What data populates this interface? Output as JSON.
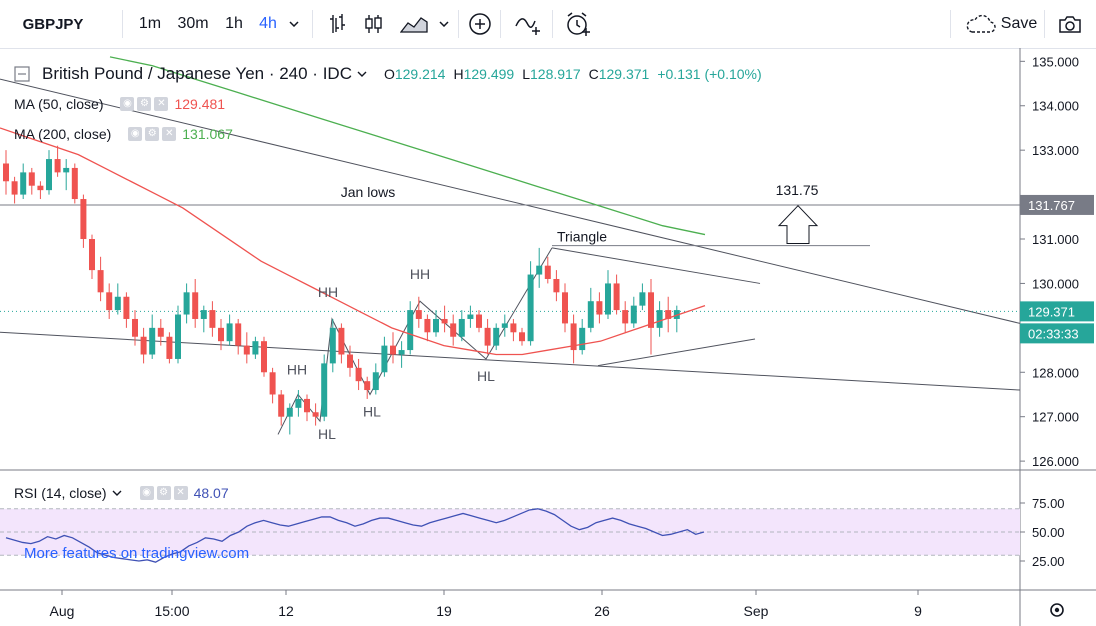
{
  "toolbar": {
    "symbol": "GBPJPY",
    "intervals": [
      "1m",
      "30m",
      "1h",
      "4h"
    ],
    "active_interval": "4h",
    "save_label": "Save"
  },
  "legend": {
    "title": "British Pound / Japanese Yen · 240 · IDC",
    "open_label": "O",
    "open": "129.214",
    "high_label": "H",
    "high": "129.499",
    "low_label": "L",
    "low": "128.917",
    "close_label": "C",
    "close": "129.371",
    "change": "+0.131 (+0.10%)",
    "ma50_name": "MA (50, close)",
    "ma50_value": "129.481",
    "ma200_name": "MA (200, close)",
    "ma200_value": "131.067",
    "rsi_name": "RSI (14, close)",
    "rsi_value": "48.07"
  },
  "promo_text": "More features on tradingview.com",
  "chart_data": {
    "type": "candlestick",
    "price_axis": {
      "ticks": [
        "135.000",
        "134.000",
        "133.000",
        "131.767",
        "131.000",
        "130.000",
        "129.371",
        "128.000",
        "127.000",
        "126.000"
      ],
      "last_price": "129.371",
      "countdown": "02:33:33",
      "range": [
        125.8,
        135.3
      ]
    },
    "time_axis": {
      "ticks": [
        "Aug",
        "15:00",
        "12",
        "19",
        "26",
        "Sep",
        "9"
      ]
    },
    "rsi_axis": {
      "ticks": [
        "75.00",
        "50.00",
        "25.00"
      ],
      "range": [
        0,
        100
      ]
    },
    "colors": {
      "up": "#26a69a",
      "down": "#ef5350",
      "ma50": "#ef5350",
      "ma200": "#4caf50",
      "rsi": "#3f51b5",
      "rsi_band": "#f3e5fc",
      "price_line": "#26a69a"
    },
    "annotations": {
      "level_label": "Jan lows",
      "level_value": 131.767,
      "target_label": "131.75",
      "pattern_label": "Triangle",
      "swing_labels": [
        "HH",
        "HH",
        "HL",
        "HL",
        "HH",
        "HL"
      ]
    },
    "candles": [
      [
        132.7,
        133.0,
        132.0,
        132.3
      ],
      [
        132.3,
        132.4,
        131.8,
        132.0
      ],
      [
        132.0,
        132.7,
        131.9,
        132.5
      ],
      [
        132.5,
        132.6,
        132.0,
        132.2
      ],
      [
        132.2,
        132.3,
        131.9,
        132.1
      ],
      [
        132.1,
        133.0,
        132.0,
        132.8
      ],
      [
        132.8,
        133.1,
        132.4,
        132.5
      ],
      [
        132.5,
        132.8,
        132.1,
        132.6
      ],
      [
        132.6,
        132.7,
        131.8,
        131.9
      ],
      [
        131.9,
        132.0,
        130.8,
        131.0
      ],
      [
        131.0,
        131.1,
        130.1,
        130.3
      ],
      [
        130.3,
        130.6,
        129.6,
        129.8
      ],
      [
        129.8,
        130.0,
        129.2,
        129.4
      ],
      [
        129.4,
        130.0,
        129.3,
        129.7
      ],
      [
        129.7,
        129.8,
        129.0,
        129.2
      ],
      [
        129.2,
        129.4,
        128.6,
        128.8
      ],
      [
        128.8,
        129.0,
        128.2,
        128.4
      ],
      [
        128.4,
        129.3,
        128.3,
        129.0
      ],
      [
        129.0,
        129.2,
        128.6,
        128.8
      ],
      [
        128.8,
        128.9,
        128.2,
        128.3
      ],
      [
        128.3,
        129.5,
        128.2,
        129.3
      ],
      [
        129.3,
        130.0,
        129.1,
        129.8
      ],
      [
        129.8,
        130.1,
        129.0,
        129.2
      ],
      [
        129.2,
        129.5,
        128.9,
        129.4
      ],
      [
        129.4,
        129.6,
        128.8,
        129.0
      ],
      [
        129.0,
        129.2,
        128.5,
        128.7
      ],
      [
        128.7,
        129.3,
        128.6,
        129.1
      ],
      [
        129.1,
        129.2,
        128.4,
        128.6
      ],
      [
        128.6,
        128.9,
        128.2,
        128.4
      ],
      [
        128.4,
        128.8,
        128.3,
        128.7
      ],
      [
        128.7,
        128.8,
        127.9,
        128.0
      ],
      [
        128.0,
        128.1,
        127.3,
        127.5
      ],
      [
        127.5,
        127.6,
        126.8,
        127.0
      ],
      [
        127.0,
        127.3,
        126.6,
        127.2
      ],
      [
        127.2,
        127.6,
        127.0,
        127.4
      ],
      [
        127.4,
        127.5,
        126.9,
        127.1
      ],
      [
        127.1,
        127.3,
        126.8,
        127.0
      ],
      [
        127.0,
        128.4,
        126.9,
        128.2
      ],
      [
        128.2,
        129.2,
        128.0,
        129.0
      ],
      [
        129.0,
        129.1,
        128.2,
        128.4
      ],
      [
        128.4,
        128.6,
        127.9,
        128.1
      ],
      [
        128.1,
        128.3,
        127.6,
        127.8
      ],
      [
        127.8,
        127.9,
        127.4,
        127.6
      ],
      [
        127.6,
        128.2,
        127.5,
        128.0
      ],
      [
        128.0,
        128.8,
        127.9,
        128.6
      ],
      [
        128.6,
        128.9,
        128.2,
        128.4
      ],
      [
        128.4,
        128.7,
        128.1,
        128.5
      ],
      [
        128.5,
        129.6,
        128.4,
        129.4
      ],
      [
        129.4,
        129.7,
        129.0,
        129.2
      ],
      [
        129.2,
        129.3,
        128.7,
        128.9
      ],
      [
        128.9,
        129.4,
        128.8,
        129.2
      ],
      [
        129.2,
        129.5,
        128.9,
        129.1
      ],
      [
        129.1,
        129.3,
        128.6,
        128.8
      ],
      [
        128.8,
        129.4,
        128.7,
        129.2
      ],
      [
        129.2,
        129.5,
        129.0,
        129.3
      ],
      [
        129.3,
        129.4,
        128.9,
        129.0
      ],
      [
        129.0,
        129.2,
        128.4,
        128.6
      ],
      [
        128.6,
        129.1,
        128.5,
        129.0
      ],
      [
        129.0,
        129.3,
        128.8,
        129.1
      ],
      [
        129.1,
        129.2,
        128.7,
        128.9
      ],
      [
        128.9,
        129.0,
        128.6,
        128.7
      ],
      [
        128.7,
        130.5,
        128.6,
        130.2
      ],
      [
        130.2,
        130.8,
        129.9,
        130.4
      ],
      [
        130.4,
        130.6,
        130.0,
        130.1
      ],
      [
        130.1,
        130.3,
        129.6,
        129.8
      ],
      [
        129.8,
        130.0,
        128.9,
        129.1
      ],
      [
        129.1,
        129.3,
        128.2,
        128.5
      ],
      [
        128.5,
        129.2,
        128.4,
        129.0
      ],
      [
        129.0,
        129.9,
        128.9,
        129.6
      ],
      [
        129.6,
        129.8,
        129.1,
        129.3
      ],
      [
        129.3,
        130.3,
        129.2,
        130.0
      ],
      [
        130.0,
        130.2,
        129.3,
        129.4
      ],
      [
        129.4,
        129.6,
        128.9,
        129.1
      ],
      [
        129.1,
        129.7,
        129.0,
        129.5
      ],
      [
        129.5,
        130.0,
        129.4,
        129.8
      ],
      [
        129.8,
        130.1,
        128.4,
        129.0
      ],
      [
        129.0,
        129.6,
        128.8,
        129.4
      ],
      [
        129.4,
        129.7,
        128.9,
        129.2
      ],
      [
        129.2,
        129.5,
        128.9,
        129.4
      ]
    ],
    "ma50": [
      133.5,
      133.3,
      133.1,
      132.9,
      132.6,
      132.3,
      132.0,
      131.7,
      131.3,
      130.9,
      130.5,
      130.2,
      129.9,
      129.6,
      129.3,
      129.0,
      128.8,
      128.6,
      128.5,
      128.4,
      128.4,
      128.5,
      128.6,
      128.7,
      128.9,
      129.1,
      129.3,
      129.5
    ],
    "ma200": [
      135.1,
      134.9,
      134.6,
      134.3,
      134.0,
      133.7,
      133.4,
      133.1,
      132.8,
      132.5,
      132.2,
      131.9,
      131.6,
      131.3,
      131.1
    ],
    "rsi": [
      45,
      43,
      41,
      40,
      42,
      46,
      44,
      47,
      45,
      41,
      37,
      32,
      30,
      28,
      27,
      26,
      25,
      26,
      24,
      28,
      31,
      33,
      38,
      41,
      45,
      44,
      42,
      47,
      50,
      55,
      58,
      60,
      58,
      56,
      55,
      57,
      59,
      61,
      63,
      63,
      60,
      58,
      55,
      57,
      60,
      62,
      62,
      60,
      58,
      56,
      55,
      58,
      60,
      62,
      64,
      66,
      64,
      62,
      60,
      58,
      60,
      63,
      66,
      69,
      70,
      68,
      65,
      60,
      55,
      52,
      54,
      58,
      60,
      62,
      60,
      57,
      55,
      53,
      50,
      47,
      48,
      50,
      52,
      48,
      50
    ]
  }
}
